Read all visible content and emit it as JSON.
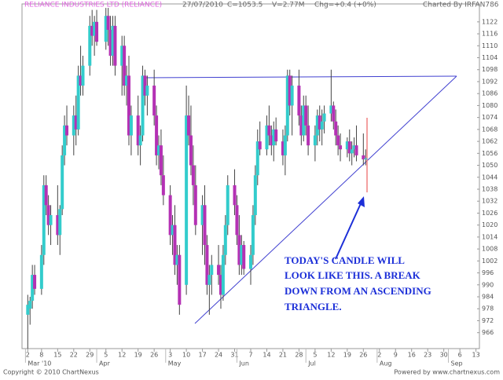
{
  "chart_data": {
    "type": "candlestick",
    "title": "RELIANCE INDUSTRIES LTD (RELIANCE)",
    "header": [
      "27/07/2010",
      "C=1053.5",
      "V=2.77M",
      "Chg=+0.4 (+0%)"
    ],
    "credit": "Charted By IRFAN786",
    "footer_left": "Copyright © 2010 ChartNexus",
    "footer_right": "Powered by www.chartnexus.com",
    "annotation": [
      "TODAY'S CANDLE WILL",
      "LOOK LIKE THIS. A BREAK",
      "DOWN FROM AN ASCENDING",
      "TRIANGLE."
    ],
    "up_color": "#33cccc",
    "down_color": "#b431b4",
    "wick_color": "#444444",
    "grid": false,
    "x": [
      1,
      2,
      3,
      4,
      7,
      8,
      9,
      10,
      11,
      14,
      15,
      16,
      17,
      18,
      21,
      22,
      23,
      24,
      25,
      28,
      29,
      30,
      31,
      35,
      36,
      37,
      38,
      39,
      42,
      43,
      44,
      45,
      46,
      49,
      50,
      51,
      52,
      53,
      56,
      57,
      58,
      59,
      60,
      63,
      64,
      65,
      66,
      67,
      70,
      71,
      72,
      73,
      74,
      77,
      78,
      79,
      80,
      81,
      84,
      85,
      86,
      87,
      88,
      91,
      92,
      93,
      94,
      95,
      98,
      99,
      100,
      101,
      102,
      105,
      106,
      107,
      108,
      109,
      112,
      113,
      114,
      115,
      116,
      119,
      120,
      121,
      122,
      123,
      126,
      127,
      128,
      129,
      130,
      133,
      134,
      135,
      136,
      137,
      140,
      141,
      142,
      143,
      144,
      147,
      148
    ],
    "open": [
      975,
      978,
      982,
      995,
      988,
      1005,
      1040,
      1030,
      1020,
      1025,
      1015,
      1028,
      1055,
      1070,
      1065,
      1075,
      1068,
      1095,
      1090,
      1100,
      1120,
      1115,
      1122,
      1112,
      1125,
      1118,
      1105,
      1120,
      1100,
      1110,
      1090,
      1095,
      1065,
      1075,
      1060,
      1065,
      1095,
      1085,
      1090,
      1075,
      1055,
      1060,
      1045,
      1035,
      1015,
      1020,
      1000,
      1005,
      990,
      1075,
      1065,
      1050,
      1040,
      1020,
      1030,
      1010,
      990,
      995,
      1000,
      995,
      985,
      1005,
      1020,
      1040,
      1030,
      1015,
      1000,
      1010,
      998,
      1005,
      1025,
      1045,
      1062,
      1058,
      1070,
      1065,
      1060,
      1068,
      1062,
      1055,
      1065,
      1095,
      1080,
      1090,
      1075,
      1065,
      1080,
      1070,
      1060,
      1065,
      1075,
      1068,
      1072,
      1076,
      1080,
      1072,
      1065,
      1060,
      1058,
      1062,
      1056,
      1058,
      1060,
      1055,
      1053
    ],
    "high": [
      985,
      984,
      1000,
      1000,
      1010,
      1045,
      1045,
      1035,
      1030,
      1040,
      1030,
      1060,
      1075,
      1080,
      1080,
      1085,
      1100,
      1110,
      1105,
      1125,
      1128,
      1125,
      1128,
      1129,
      1129,
      1125,
      1125,
      1125,
      1115,
      1115,
      1100,
      1105,
      1080,
      1085,
      1070,
      1100,
      1098,
      1095,
      1098,
      1080,
      1065,
      1068,
      1055,
      1040,
      1025,
      1030,
      1010,
      1010,
      1090,
      1085,
      1080,
      1060,
      1050,
      1035,
      1040,
      1015,
      1000,
      1005,
      1010,
      1000,
      1010,
      1025,
      1045,
      1048,
      1035,
      1025,
      1015,
      1012,
      1010,
      1030,
      1050,
      1068,
      1072,
      1075,
      1080,
      1070,
      1072,
      1074,
      1068,
      1070,
      1098,
      1098,
      1095,
      1098,
      1080,
      1085,
      1085,
      1080,
      1070,
      1078,
      1080,
      1078,
      1080,
      1098,
      1082,
      1078,
      1070,
      1066,
      1064,
      1068,
      1062,
      1064,
      1070,
      1066,
      1058
    ],
    "low": [
      958,
      970,
      978,
      985,
      985,
      1000,
      1025,
      1015,
      1010,
      1010,
      1005,
      1025,
      1050,
      1060,
      1055,
      1060,
      1065,
      1085,
      1085,
      1095,
      1110,
      1105,
      1110,
      1108,
      1110,
      1100,
      1100,
      1095,
      1085,
      1085,
      1080,
      1060,
      1055,
      1055,
      1050,
      1062,
      1080,
      1075,
      1070,
      1050,
      1048,
      1040,
      1030,
      1010,
      1005,
      995,
      990,
      975,
      985,
      1060,
      1045,
      1030,
      1015,
      1005,
      1000,
      985,
      975,
      985,
      990,
      978,
      982,
      1000,
      1015,
      1025,
      1010,
      995,
      995,
      995,
      990,
      1000,
      1020,
      1040,
      1055,
      1055,
      1060,
      1055,
      1052,
      1060,
      1050,
      1045,
      1062,
      1075,
      1065,
      1070,
      1060,
      1062,
      1065,
      1055,
      1052,
      1060,
      1062,
      1060,
      1066,
      1072,
      1068,
      1060,
      1055,
      1052,
      1054,
      1052,
      1050,
      1054,
      1052,
      1050,
      1050
    ],
    "close": [
      980,
      982,
      995,
      988,
      1005,
      1040,
      1030,
      1020,
      1025,
      1015,
      1028,
      1055,
      1070,
      1065,
      1075,
      1068,
      1095,
      1090,
      1100,
      1120,
      1115,
      1122,
      1112,
      1125,
      1118,
      1105,
      1120,
      1100,
      1110,
      1090,
      1095,
      1065,
      1075,
      1060,
      1065,
      1095,
      1085,
      1090,
      1075,
      1055,
      1060,
      1045,
      1035,
      1015,
      1020,
      1000,
      1005,
      980,
      1075,
      1065,
      1050,
      1040,
      1020,
      1030,
      1010,
      990,
      995,
      1000,
      995,
      985,
      1005,
      1020,
      1040,
      1030,
      1015,
      1000,
      1010,
      998,
      1005,
      1025,
      1045,
      1062,
      1058,
      1070,
      1065,
      1060,
      1068,
      1062,
      1055,
      1065,
      1095,
      1080,
      1090,
      1075,
      1065,
      1080,
      1070,
      1060,
      1065,
      1075,
      1068,
      1072,
      1076,
      1080,
      1072,
      1065,
      1060,
      1058,
      1062,
      1056,
      1058,
      1060,
      1055,
      1053,
      1053.5
    ],
    "xlim": [
      -1.5,
      197.5
    ],
    "ylim": [
      958,
      1131
    ],
    "yticks": [
      966,
      972,
      978,
      984,
      990,
      996,
      1002,
      1008,
      1014,
      1020,
      1026,
      1032,
      1038,
      1044,
      1050,
      1056,
      1062,
      1068,
      1074,
      1080,
      1086,
      1092,
      1098,
      1104,
      1110,
      1116,
      1122
    ],
    "xticks": [
      {
        "value": 1,
        "label": "2"
      },
      {
        "value": 7,
        "label": "8"
      },
      {
        "value": 14,
        "label": "15"
      },
      {
        "value": 21,
        "label": "22"
      },
      {
        "value": 28,
        "label": "29"
      },
      {
        "value": 35,
        "label": "5"
      },
      {
        "value": 42,
        "label": "12"
      },
      {
        "value": 49,
        "label": "19"
      },
      {
        "value": 56,
        "label": "26"
      },
      {
        "value": 63,
        "label": "3"
      },
      {
        "value": 70,
        "label": "10"
      },
      {
        "value": 77,
        "label": "17"
      },
      {
        "value": 84,
        "label": "24"
      },
      {
        "value": 91,
        "label": "31"
      },
      {
        "value": 98,
        "label": "7"
      },
      {
        "value": 105,
        "label": "14"
      },
      {
        "value": 112,
        "label": "21"
      },
      {
        "value": 119,
        "label": "28"
      },
      {
        "value": 126,
        "label": "5"
      },
      {
        "value": 133,
        "label": "12"
      },
      {
        "value": 140,
        "label": "19"
      },
      {
        "value": 147,
        "label": "26"
      },
      {
        "value": 154,
        "label": "2"
      },
      {
        "value": 161,
        "label": "9"
      },
      {
        "value": 168,
        "label": "16"
      },
      {
        "value": 175,
        "label": "23"
      },
      {
        "value": 182,
        "label": "30"
      },
      {
        "value": 189,
        "label": "6"
      },
      {
        "value": 196,
        "label": "13"
      }
    ],
    "month_ticks": [
      {
        "value": 0,
        "label": "Mar '10"
      },
      {
        "value": 31,
        "label": "Apr"
      },
      {
        "value": 61,
        "label": "May"
      },
      {
        "value": 92,
        "label": "Jun"
      },
      {
        "value": 122,
        "label": "Jul"
      },
      {
        "value": 153,
        "label": "Aug"
      },
      {
        "value": 184,
        "label": "Sep"
      }
    ]
  }
}
